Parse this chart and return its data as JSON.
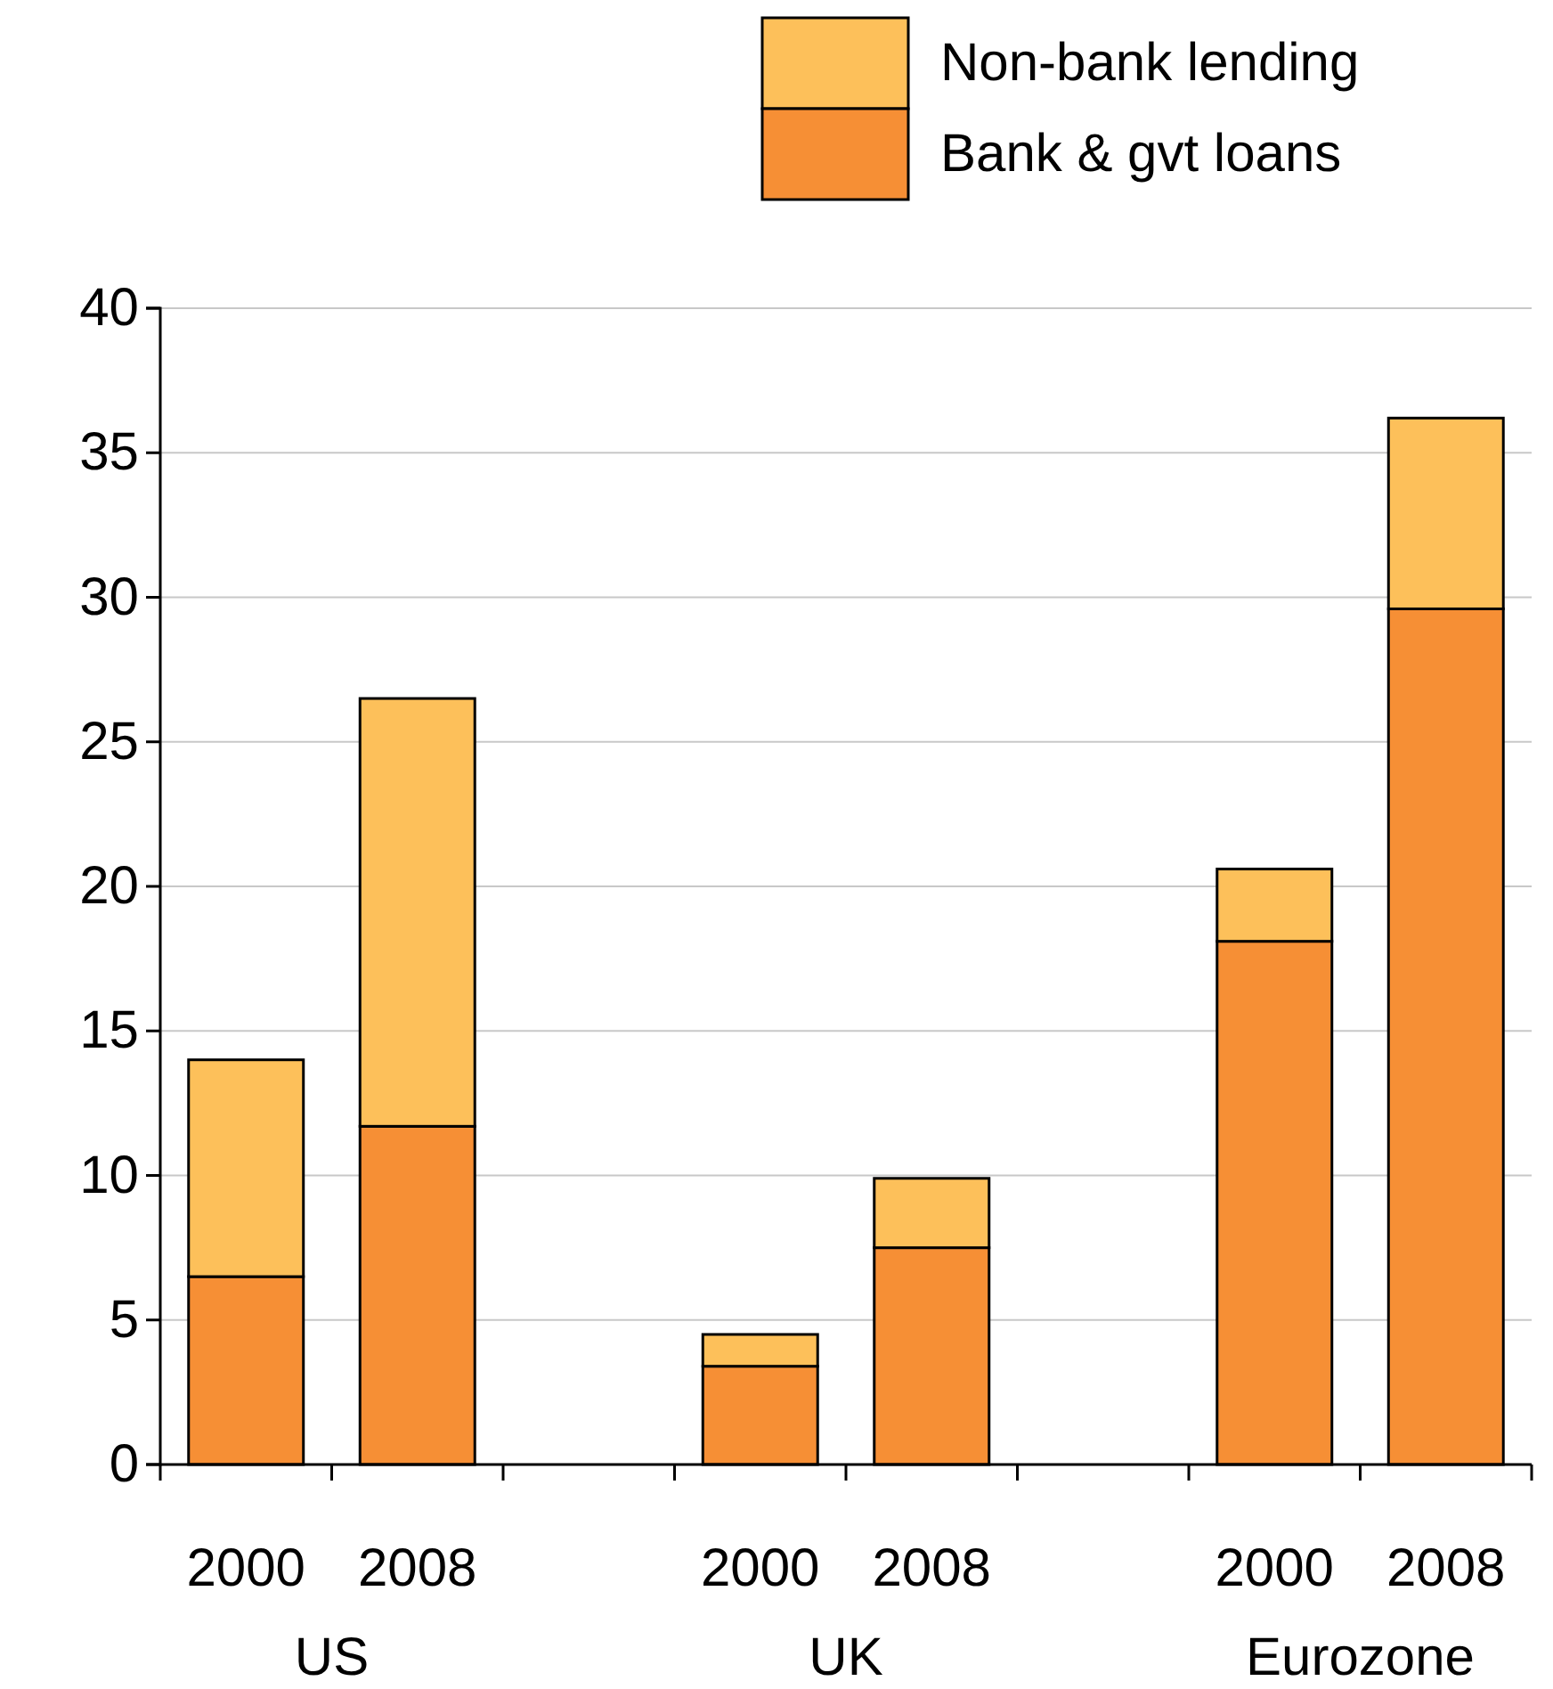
{
  "chart_data": {
    "type": "bar",
    "stacked": true,
    "categories": [
      "2000",
      "2008",
      null,
      "2000",
      "2008",
      null,
      "2000",
      "2008"
    ],
    "series": [
      {
        "name": "Bank & gvt loans",
        "color": "#f68f35",
        "values": [
          6.5,
          11.7,
          null,
          3.4,
          7.5,
          null,
          18.1,
          29.6
        ]
      },
      {
        "name": "Non-bank lending",
        "color": "#fdc05a",
        "values": [
          7.5,
          14.8,
          null,
          1.1,
          2.4,
          null,
          2.5,
          6.6
        ]
      }
    ],
    "annotations": [
      "US",
      "UK",
      "Eurozone"
    ],
    "ylim": [
      0,
      40
    ],
    "yticks": [
      0,
      5,
      10,
      15,
      20,
      25,
      30,
      35,
      40
    ],
    "grid": "y",
    "legend": "top right"
  }
}
